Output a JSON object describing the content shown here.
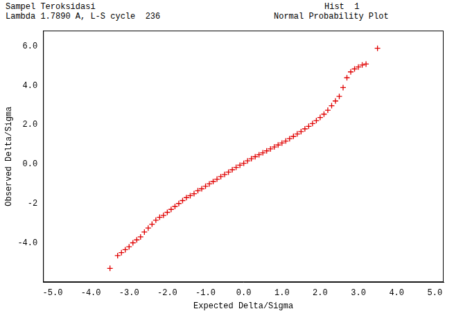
{
  "chart_data": {
    "type": "scatter",
    "title": "Sampel Teroksidasi",
    "subtitle": "Lambda 1.7890 A, L-S cycle  236",
    "annotations": [
      "Hist  1",
      "Normal Probability Plot"
    ],
    "x_label": "Expected Delta/Sigma",
    "y_label": "Observed Delta/Sigma",
    "x": [
      -3.5,
      -3.3,
      -3.2,
      -3.1,
      -3.0,
      -2.9,
      -2.8,
      -2.7,
      -2.6,
      -2.5,
      -2.4,
      -2.3,
      -2.2,
      -2.1,
      -2.0,
      -1.9,
      -1.8,
      -1.7,
      -1.6,
      -1.5,
      -1.4,
      -1.3,
      -1.2,
      -1.1,
      -1.0,
      -0.9,
      -0.8,
      -0.7,
      -0.6,
      -0.5,
      -0.4,
      -0.3,
      -0.2,
      -0.1,
      0.0,
      0.1,
      0.2,
      0.3,
      0.4,
      0.5,
      0.6,
      0.7,
      0.8,
      0.9,
      1.0,
      1.1,
      1.2,
      1.3,
      1.4,
      1.5,
      1.6,
      1.7,
      1.8,
      1.9,
      2.0,
      2.1,
      2.2,
      2.3,
      2.4,
      2.5,
      2.6,
      2.7,
      2.8,
      2.9,
      3.0,
      3.1,
      3.2,
      3.5
    ],
    "values": [
      -5.3,
      -4.65,
      -4.5,
      -4.35,
      -4.2,
      -4.0,
      -3.85,
      -3.7,
      -3.45,
      -3.25,
      -3.05,
      -2.85,
      -2.7,
      -2.6,
      -2.45,
      -2.3,
      -2.15,
      -2.0,
      -1.85,
      -1.7,
      -1.6,
      -1.5,
      -1.35,
      -1.25,
      -1.12,
      -1.0,
      -0.88,
      -0.76,
      -0.63,
      -0.52,
      -0.4,
      -0.28,
      -0.16,
      -0.05,
      0.05,
      0.17,
      0.28,
      0.38,
      0.48,
      0.58,
      0.68,
      0.78,
      0.88,
      0.98,
      1.08,
      1.18,
      1.3,
      1.42,
      1.54,
      1.66,
      1.8,
      1.93,
      2.07,
      2.22,
      2.38,
      2.55,
      2.75,
      2.98,
      3.22,
      3.45,
      3.9,
      4.4,
      4.7,
      4.85,
      4.95,
      5.05,
      5.1,
      5.9
    ],
    "color": "#e00000",
    "marker": "cross",
    "xlim": [
      -5.25,
      5.23
    ],
    "xticks": [
      {
        "value": -5,
        "label": "-5.0"
      },
      {
        "value": -4,
        "label": "-4.0"
      },
      {
        "value": -3,
        "label": "-3.0"
      },
      {
        "value": -2,
        "label": "-2.0"
      },
      {
        "value": -1,
        "label": "-1.0"
      },
      {
        "value": 0,
        "label": "0.0"
      },
      {
        "value": 1,
        "label": "1.0"
      },
      {
        "value": 2,
        "label": "2.0"
      },
      {
        "value": 3,
        "label": "3.0"
      },
      {
        "value": 4,
        "label": "4.0"
      },
      {
        "value": 5,
        "label": "5.0"
      }
    ],
    "ylim": [
      -6.0,
      6.8
    ],
    "yticks": [
      {
        "value": -4,
        "label": "-4.0"
      },
      -2,
      {
        "value": 0,
        "label": "0.0"
      },
      {
        "value": 2,
        "label": "2.0"
      },
      {
        "value": 4,
        "label": "4.0"
      },
      {
        "value": 6,
        "label": "6.0"
      }
    ],
    "grid": false,
    "tick_labels": true
  }
}
